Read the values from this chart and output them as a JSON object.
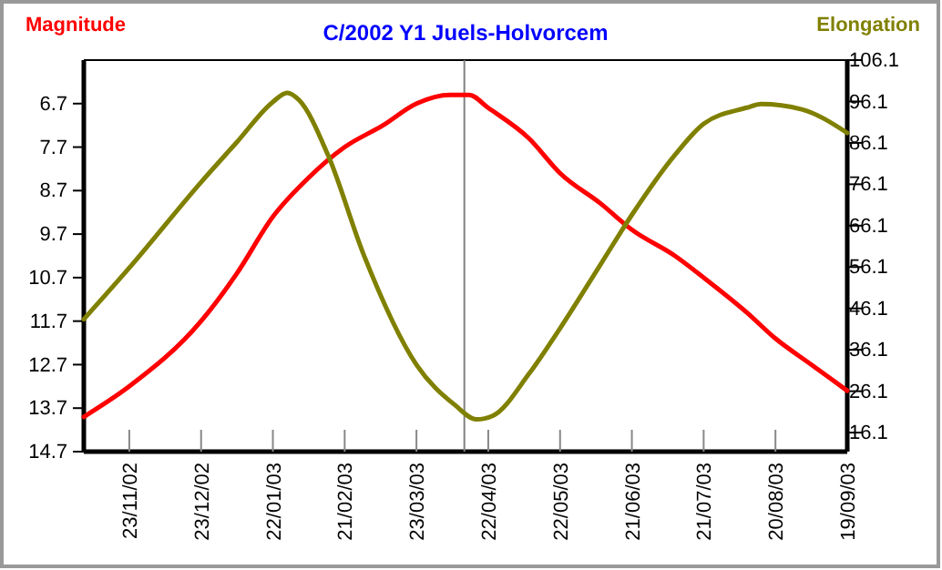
{
  "chart_data": {
    "type": "line",
    "title": "C/2002 Y1 Juels-Holvorcem",
    "ylabel": "Magnitude",
    "y2label": "Elongation",
    "xlim": [
      "2002-11-04",
      "2003-09-19"
    ],
    "xticks": [
      {
        "value": "2002-11-23",
        "label": "23/11/02"
      },
      {
        "value": "2002-12-23",
        "label": "23/12/02"
      },
      {
        "value": "2003-01-22",
        "label": "22/01/03"
      },
      {
        "value": "2003-02-21",
        "label": "21/02/03"
      },
      {
        "value": "2003-03-23",
        "label": "23/03/03"
      },
      {
        "value": "2003-04-22",
        "label": "22/04/03"
      },
      {
        "value": "2003-05-22",
        "label": "22/05/03"
      },
      {
        "value": "2003-06-21",
        "label": "21/06/03"
      },
      {
        "value": "2003-07-21",
        "label": "21/07/03"
      },
      {
        "value": "2003-08-20",
        "label": "20/08/03"
      },
      {
        "value": "2003-09-19",
        "label": "19/09/03"
      }
    ],
    "ylim": [
      14.7,
      5.7
    ],
    "yticks": [
      6.7,
      7.7,
      8.7,
      9.7,
      10.7,
      11.7,
      12.7,
      13.7,
      14.7
    ],
    "y2lim": [
      11.5,
      106.1
    ],
    "y2ticks": [
      16.1,
      26.1,
      36.1,
      46.1,
      56.1,
      66.1,
      76.1,
      86.1,
      96.1,
      106.1
    ],
    "grid": false,
    "marker": "none",
    "line_style": "solid",
    "ref_lines": [
      {
        "axis": "x",
        "value": "2003-04-12",
        "color": "#808080"
      }
    ],
    "series": [
      {
        "color": "#ff0000",
        "x": [
          "2002-11-04",
          "2002-11-23",
          "2002-12-23",
          "2003-01-07",
          "2003-01-22",
          "2003-02-06",
          "2003-02-21",
          "2003-03-09",
          "2003-03-23",
          "2003-04-06",
          "2003-04-14",
          "2003-04-22",
          "2003-05-09",
          "2003-05-22",
          "2003-06-08",
          "2003-06-21",
          "2003-07-09",
          "2003-07-21",
          "2003-08-08",
          "2003-08-20",
          "2003-09-04",
          "2003-09-19"
        ],
        "values": [
          13.9,
          13.2,
          11.7,
          10.6,
          9.3,
          8.4,
          7.7,
          7.2,
          6.7,
          6.5,
          6.5,
          6.8,
          7.5,
          8.3,
          9.0,
          9.6,
          10.2,
          10.7,
          11.5,
          12.1,
          12.7,
          13.3
        ]
      },
      {
        "color": "#808000",
        "axis": "y2",
        "x": [
          "2002-11-04",
          "2002-11-23",
          "2002-12-23",
          "2003-01-07",
          "2003-01-22",
          "2003-01-28",
          "2003-02-02",
          "2003-02-14",
          "2003-03-01",
          "2003-03-23",
          "2003-04-08",
          "2003-04-17",
          "2003-04-24",
          "2003-05-09",
          "2003-05-22",
          "2003-06-08",
          "2003-06-21",
          "2003-07-09",
          "2003-07-21",
          "2003-08-08",
          "2003-08-14",
          "2003-08-31",
          "2003-09-19"
        ],
        "values": [
          43.5,
          55.9,
          76.6,
          86.3,
          96.0,
          98.2,
          96.4,
          83.2,
          59.0,
          32.5,
          22.8,
          19.3,
          20.2,
          30.3,
          41.3,
          56.8,
          68.7,
          83.2,
          90.7,
          94.6,
          95.5,
          94.2,
          88.5
        ]
      }
    ]
  }
}
